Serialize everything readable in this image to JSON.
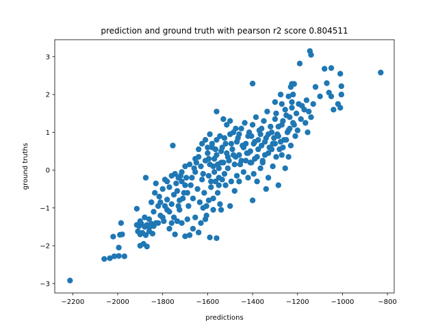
{
  "chart_data": {
    "type": "scatter",
    "title": "prediction and ground truth with pearson r2 score 0.804511",
    "xlabel": "predictions",
    "ylabel": "ground truths",
    "xlim": [
      -2280,
      -770
    ],
    "ylim": [
      -3.25,
      3.45
    ],
    "xticks": [
      -2200,
      -2000,
      -1800,
      -1600,
      -1400,
      -1200,
      -1000,
      -800
    ],
    "yticks": [
      -3,
      -2,
      -1,
      0,
      1,
      2,
      3
    ],
    "grid": false,
    "legend": "none",
    "marker_color": "#1f77b4",
    "series": [
      {
        "points": [
          [
            -2212,
            -2.92
          ],
          [
            -2060,
            -2.35
          ],
          [
            -2035,
            -2.33
          ],
          [
            -2015,
            -2.28
          ],
          [
            -1995,
            -2.27
          ],
          [
            -1970,
            -2.28
          ],
          [
            -1995,
            -2.05
          ],
          [
            -2020,
            -1.76
          ],
          [
            -1990,
            -1.71
          ],
          [
            -1980,
            -1.7
          ],
          [
            -1985,
            -1.4
          ],
          [
            -1915,
            -1.45
          ],
          [
            -1905,
            -1.48
          ],
          [
            -1895,
            -1.42
          ],
          [
            -1880,
            -1.5
          ],
          [
            -1870,
            -1.45
          ],
          [
            -1860,
            -1.52
          ],
          [
            -1850,
            -1.42
          ],
          [
            -1840,
            -1.48
          ],
          [
            -1830,
            -1.4
          ],
          [
            -1910,
            -1.62
          ],
          [
            -1900,
            -1.7
          ],
          [
            -1890,
            -1.66
          ],
          [
            -1875,
            -1.72
          ],
          [
            -1860,
            -1.62
          ],
          [
            -1845,
            -1.68
          ],
          [
            -1900,
            -2.0
          ],
          [
            -1885,
            -1.95
          ],
          [
            -1870,
            -2.02
          ],
          [
            -1915,
            -1.02
          ],
          [
            -1875,
            -0.2
          ],
          [
            -1850,
            -0.85
          ],
          [
            -1835,
            -0.6
          ],
          [
            -1820,
            -0.95
          ],
          [
            -1810,
            -1.2
          ],
          [
            -1795,
            -1.35
          ],
          [
            -1780,
            -1.05
          ],
          [
            -1770,
            -1.55
          ],
          [
            -1760,
            -1.4
          ],
          [
            -1750,
            -1.25
          ],
          [
            -1745,
            -1.7
          ],
          [
            -1735,
            -1.35
          ],
          [
            -1725,
            -1.05
          ],
          [
            -1715,
            -1.4
          ],
          [
            -1700,
            -1.75
          ],
          [
            -1690,
            -1.3
          ],
          [
            -1680,
            -1.72
          ],
          [
            -1665,
            -1.55
          ],
          [
            -1655,
            -1.25
          ],
          [
            -1640,
            -1.65
          ],
          [
            -1630,
            -1.4
          ],
          [
            -1610,
            -1.3
          ],
          [
            -1590,
            -1.78
          ],
          [
            -1560,
            -1.8
          ],
          [
            -1830,
            -0.35
          ],
          [
            -1815,
            -0.7
          ],
          [
            -1800,
            -0.5
          ],
          [
            -1790,
            -0.25
          ],
          [
            -1780,
            -0.78
          ],
          [
            -1770,
            -0.45
          ],
          [
            -1760,
            -0.9
          ],
          [
            -1755,
            0.65
          ],
          [
            -1745,
            -0.1
          ],
          [
            -1735,
            -0.55
          ],
          [
            -1725,
            -0.8
          ],
          [
            -1715,
            -0.3
          ],
          [
            -1705,
            -0.6
          ],
          [
            -1695,
            -0.2
          ],
          [
            -1685,
            -0.95
          ],
          [
            -1675,
            -0.4
          ],
          [
            -1665,
            -0.75
          ],
          [
            -1655,
            -0.05
          ],
          [
            -1645,
            -0.5
          ],
          [
            -1635,
            -0.85
          ],
          [
            -1625,
            -0.25
          ],
          [
            -1615,
            -0.6
          ],
          [
            -1605,
            -0.95
          ],
          [
            -1595,
            -0.15
          ],
          [
            -1585,
            -0.45
          ],
          [
            -1575,
            -0.75
          ],
          [
            -1565,
            -0.3
          ],
          [
            -1555,
            -0.6
          ],
          [
            -1545,
            -0.9
          ],
          [
            -1540,
            -1.05
          ],
          [
            -1500,
            -0.95
          ],
          [
            -1400,
            -0.8
          ],
          [
            -1520,
            -0.4
          ],
          [
            -1480,
            -0.55
          ],
          [
            -1460,
            -0.3
          ],
          [
            -1660,
            0.05
          ],
          [
            -1650,
            0.2
          ],
          [
            -1640,
            0.35
          ],
          [
            -1630,
            0.1
          ],
          [
            -1620,
            -0.1
          ],
          [
            -1610,
            0.25
          ],
          [
            -1600,
            0.45
          ],
          [
            -1590,
            0.15
          ],
          [
            -1580,
            0.6
          ],
          [
            -1570,
            0.3
          ],
          [
            -1560,
            0.8
          ],
          [
            -1550,
            0.05
          ],
          [
            -1540,
            0.5
          ],
          [
            -1530,
            0.2
          ],
          [
            -1520,
            0.7
          ],
          [
            -1510,
            0.35
          ],
          [
            -1500,
            0.95
          ],
          [
            -1490,
            0.55
          ],
          [
            -1480,
            0.15
          ],
          [
            -1470,
            0.75
          ],
          [
            -1460,
            0.4
          ],
          [
            -1450,
            1.1
          ],
          [
            -1440,
            0.6
          ],
          [
            -1430,
            0.25
          ],
          [
            -1420,
            0.9
          ],
          [
            -1410,
            0.5
          ],
          [
            -1400,
            1.2
          ],
          [
            -1390,
            0.75
          ],
          [
            -1380,
            0.35
          ],
          [
            -1370,
            1.05
          ],
          [
            -1360,
            0.65
          ],
          [
            -1350,
            1.3
          ],
          [
            -1340,
            0.85
          ],
          [
            -1330,
            0.45
          ],
          [
            -1320,
            1.15
          ],
          [
            -1310,
            0.7
          ],
          [
            -1300,
            1.35
          ],
          [
            -1290,
            0.95
          ],
          [
            -1280,
            0.55
          ],
          [
            -1270,
            1.2
          ],
          [
            -1260,
            0.8
          ],
          [
            -1250,
            1.45
          ],
          [
            -1240,
            1.05
          ],
          [
            -1230,
            0.65
          ],
          [
            -1220,
            1.25
          ],
          [
            -1210,
            0.9
          ],
          [
            -1590,
            0.95
          ],
          [
            -1580,
            0.7
          ],
          [
            -1570,
            -0.05
          ],
          [
            -1560,
            0.4
          ],
          [
            -1550,
            -0.2
          ],
          [
            -1545,
            0.9
          ],
          [
            -1535,
            0.6
          ],
          [
            -1525,
            -0.1
          ],
          [
            -1515,
            0.45
          ],
          [
            -1505,
            0.25
          ],
          [
            -1495,
            0.7
          ],
          [
            -1485,
            1.0
          ],
          [
            -1475,
            0.35
          ],
          [
            -1465,
            0.85
          ],
          [
            -1455,
            0.15
          ],
          [
            -1445,
            0.65
          ],
          [
            -1435,
            1.25
          ],
          [
            -1425,
            0.45
          ],
          [
            -1415,
            0.95
          ],
          [
            -1405,
            0.2
          ],
          [
            -1395,
            0.7
          ],
          [
            -1385,
            1.4
          ],
          [
            -1375,
            0.55
          ],
          [
            -1365,
            0.95
          ],
          [
            -1355,
            0.25
          ],
          [
            -1345,
            0.75
          ],
          [
            -1335,
            1.55
          ],
          [
            -1325,
            0.6
          ],
          [
            -1315,
            1.0
          ],
          [
            -1305,
            0.85
          ],
          [
            -1295,
            1.5
          ],
          [
            -1285,
            1.15
          ],
          [
            -1275,
            0.75
          ],
          [
            -1265,
            1.3
          ],
          [
            -1255,
            1.6
          ],
          [
            -1245,
            1.0
          ],
          [
            -1235,
            1.4
          ],
          [
            -1225,
            1.65
          ],
          [
            -1215,
            1.2
          ],
          [
            -1205,
            1.5
          ],
          [
            -1195,
            1.75
          ],
          [
            -1180,
            1.7
          ],
          [
            -1170,
            1.6
          ],
          [
            -1160,
            1.85
          ],
          [
            -1150,
            1.55
          ],
          [
            -1140,
            1.4
          ],
          [
            -1130,
            1.75
          ],
          [
            -1145,
            3.15
          ],
          [
            -1140,
            3.05
          ],
          [
            -1190,
            2.82
          ],
          [
            -1215,
            2.28
          ],
          [
            -1225,
            2.28
          ],
          [
            -1230,
            2.2
          ],
          [
            -1220,
            2.0
          ],
          [
            -1225,
            1.8
          ],
          [
            -1240,
            1.95
          ],
          [
            -1275,
            2.0
          ],
          [
            -1300,
            1.8
          ],
          [
            -1270,
            1.75
          ],
          [
            -1400,
            2.29
          ],
          [
            -1080,
            2.68
          ],
          [
            -1050,
            2.7
          ],
          [
            -1010,
            2.55
          ],
          [
            -1070,
            2.3
          ],
          [
            -1060,
            2.05
          ],
          [
            -1100,
            1.95
          ],
          [
            -1050,
            1.95
          ],
          [
            -1005,
            2.22
          ],
          [
            -1005,
            2.0
          ],
          [
            -1020,
            1.75
          ],
          [
            -1040,
            1.6
          ],
          [
            -1010,
            1.65
          ],
          [
            -1120,
            2.2
          ],
          [
            -830,
            2.58
          ],
          [
            -1560,
            1.55
          ],
          [
            -1530,
            1.35
          ],
          [
            -1515,
            1.2
          ],
          [
            -1500,
            1.3
          ],
          [
            -1475,
            1.1
          ],
          [
            -1415,
            1.0
          ],
          [
            -1420,
            -0.2
          ],
          [
            -1410,
            0.2
          ],
          [
            -1395,
            -0.1
          ],
          [
            -1380,
            -0.3
          ],
          [
            -1365,
            0.05
          ],
          [
            -1355,
            0.2
          ],
          [
            -1340,
            -0.5
          ],
          [
            -1330,
            -0.2
          ],
          [
            -1310,
            0.1
          ],
          [
            -1295,
            0.35
          ],
          [
            -1285,
            -0.4
          ],
          [
            -1270,
            0.4
          ],
          [
            -1255,
            0.05
          ],
          [
            -1240,
            0.35
          ],
          [
            -1620,
            -1.0
          ],
          [
            -1605,
            -1.2
          ],
          [
            -1595,
            -0.8
          ],
          [
            -1575,
            -1.05
          ],
          [
            -1690,
            -0.6
          ],
          [
            -1700,
            -0.4
          ],
          [
            -1710,
            -0.75
          ],
          [
            -1720,
            -0.15
          ],
          [
            -1730,
            -0.95
          ],
          [
            -1740,
            -0.35
          ],
          [
            -1750,
            -0.65
          ],
          [
            -1760,
            -0.15
          ],
          [
            -1770,
            -1.1
          ],
          [
            -1780,
            -0.3
          ],
          [
            -1790,
            -0.95
          ],
          [
            -1800,
            -1.25
          ],
          [
            -1810,
            -0.85
          ],
          [
            -1820,
            -1.4
          ],
          [
            -1840,
            -1.1
          ],
          [
            -1860,
            -1.3
          ],
          [
            -1880,
            -1.25
          ],
          [
            -1900,
            -1.35
          ],
          [
            -1655,
            0.3
          ],
          [
            -1670,
            -0.2
          ],
          [
            -1680,
            0.15
          ],
          [
            -1700,
            0.1
          ],
          [
            -1715,
            -0.05
          ],
          [
            -1730,
            -0.2
          ],
          [
            -1640,
            0.55
          ],
          [
            -1625,
            0.7
          ],
          [
            -1610,
            0.8
          ],
          [
            -1600,
            0.6
          ],
          [
            -1595,
            0.3
          ],
          [
            -1585,
            -0.3
          ],
          [
            -1575,
            0.1
          ],
          [
            -1565,
            0.55
          ],
          [
            -1555,
            0.15
          ],
          [
            -1550,
            -0.4
          ],
          [
            -1540,
            0.2
          ],
          [
            -1535,
            -0.25
          ],
          [
            -1525,
            0.85
          ],
          [
            -1510,
            0.05
          ],
          [
            -1495,
            -0.3
          ],
          [
            -1485,
            0.4
          ],
          [
            -1470,
            -0.15
          ],
          [
            -1460,
            0.95
          ],
          [
            -1450,
            0.25
          ],
          [
            -1440,
            -0.05
          ],
          [
            -1430,
            0.7
          ],
          [
            -1420,
            0.45
          ],
          [
            -1405,
            0.9
          ],
          [
            -1390,
            0.3
          ],
          [
            -1375,
            0.8
          ],
          [
            -1360,
            1.1
          ],
          [
            -1345,
            0.4
          ],
          [
            -1330,
            0.95
          ],
          [
            -1315,
            0.55
          ],
          [
            -1300,
            0.7
          ],
          [
            -1285,
            0.9
          ],
          [
            -1265,
            0.6
          ],
          [
            -1250,
            0.8
          ],
          [
            -1235,
            1.1
          ],
          [
            -1200,
            1.05
          ],
          [
            -1185,
            1.35
          ],
          [
            -1165,
            1.25
          ],
          [
            -1155,
            1.0
          ]
        ]
      }
    ]
  }
}
